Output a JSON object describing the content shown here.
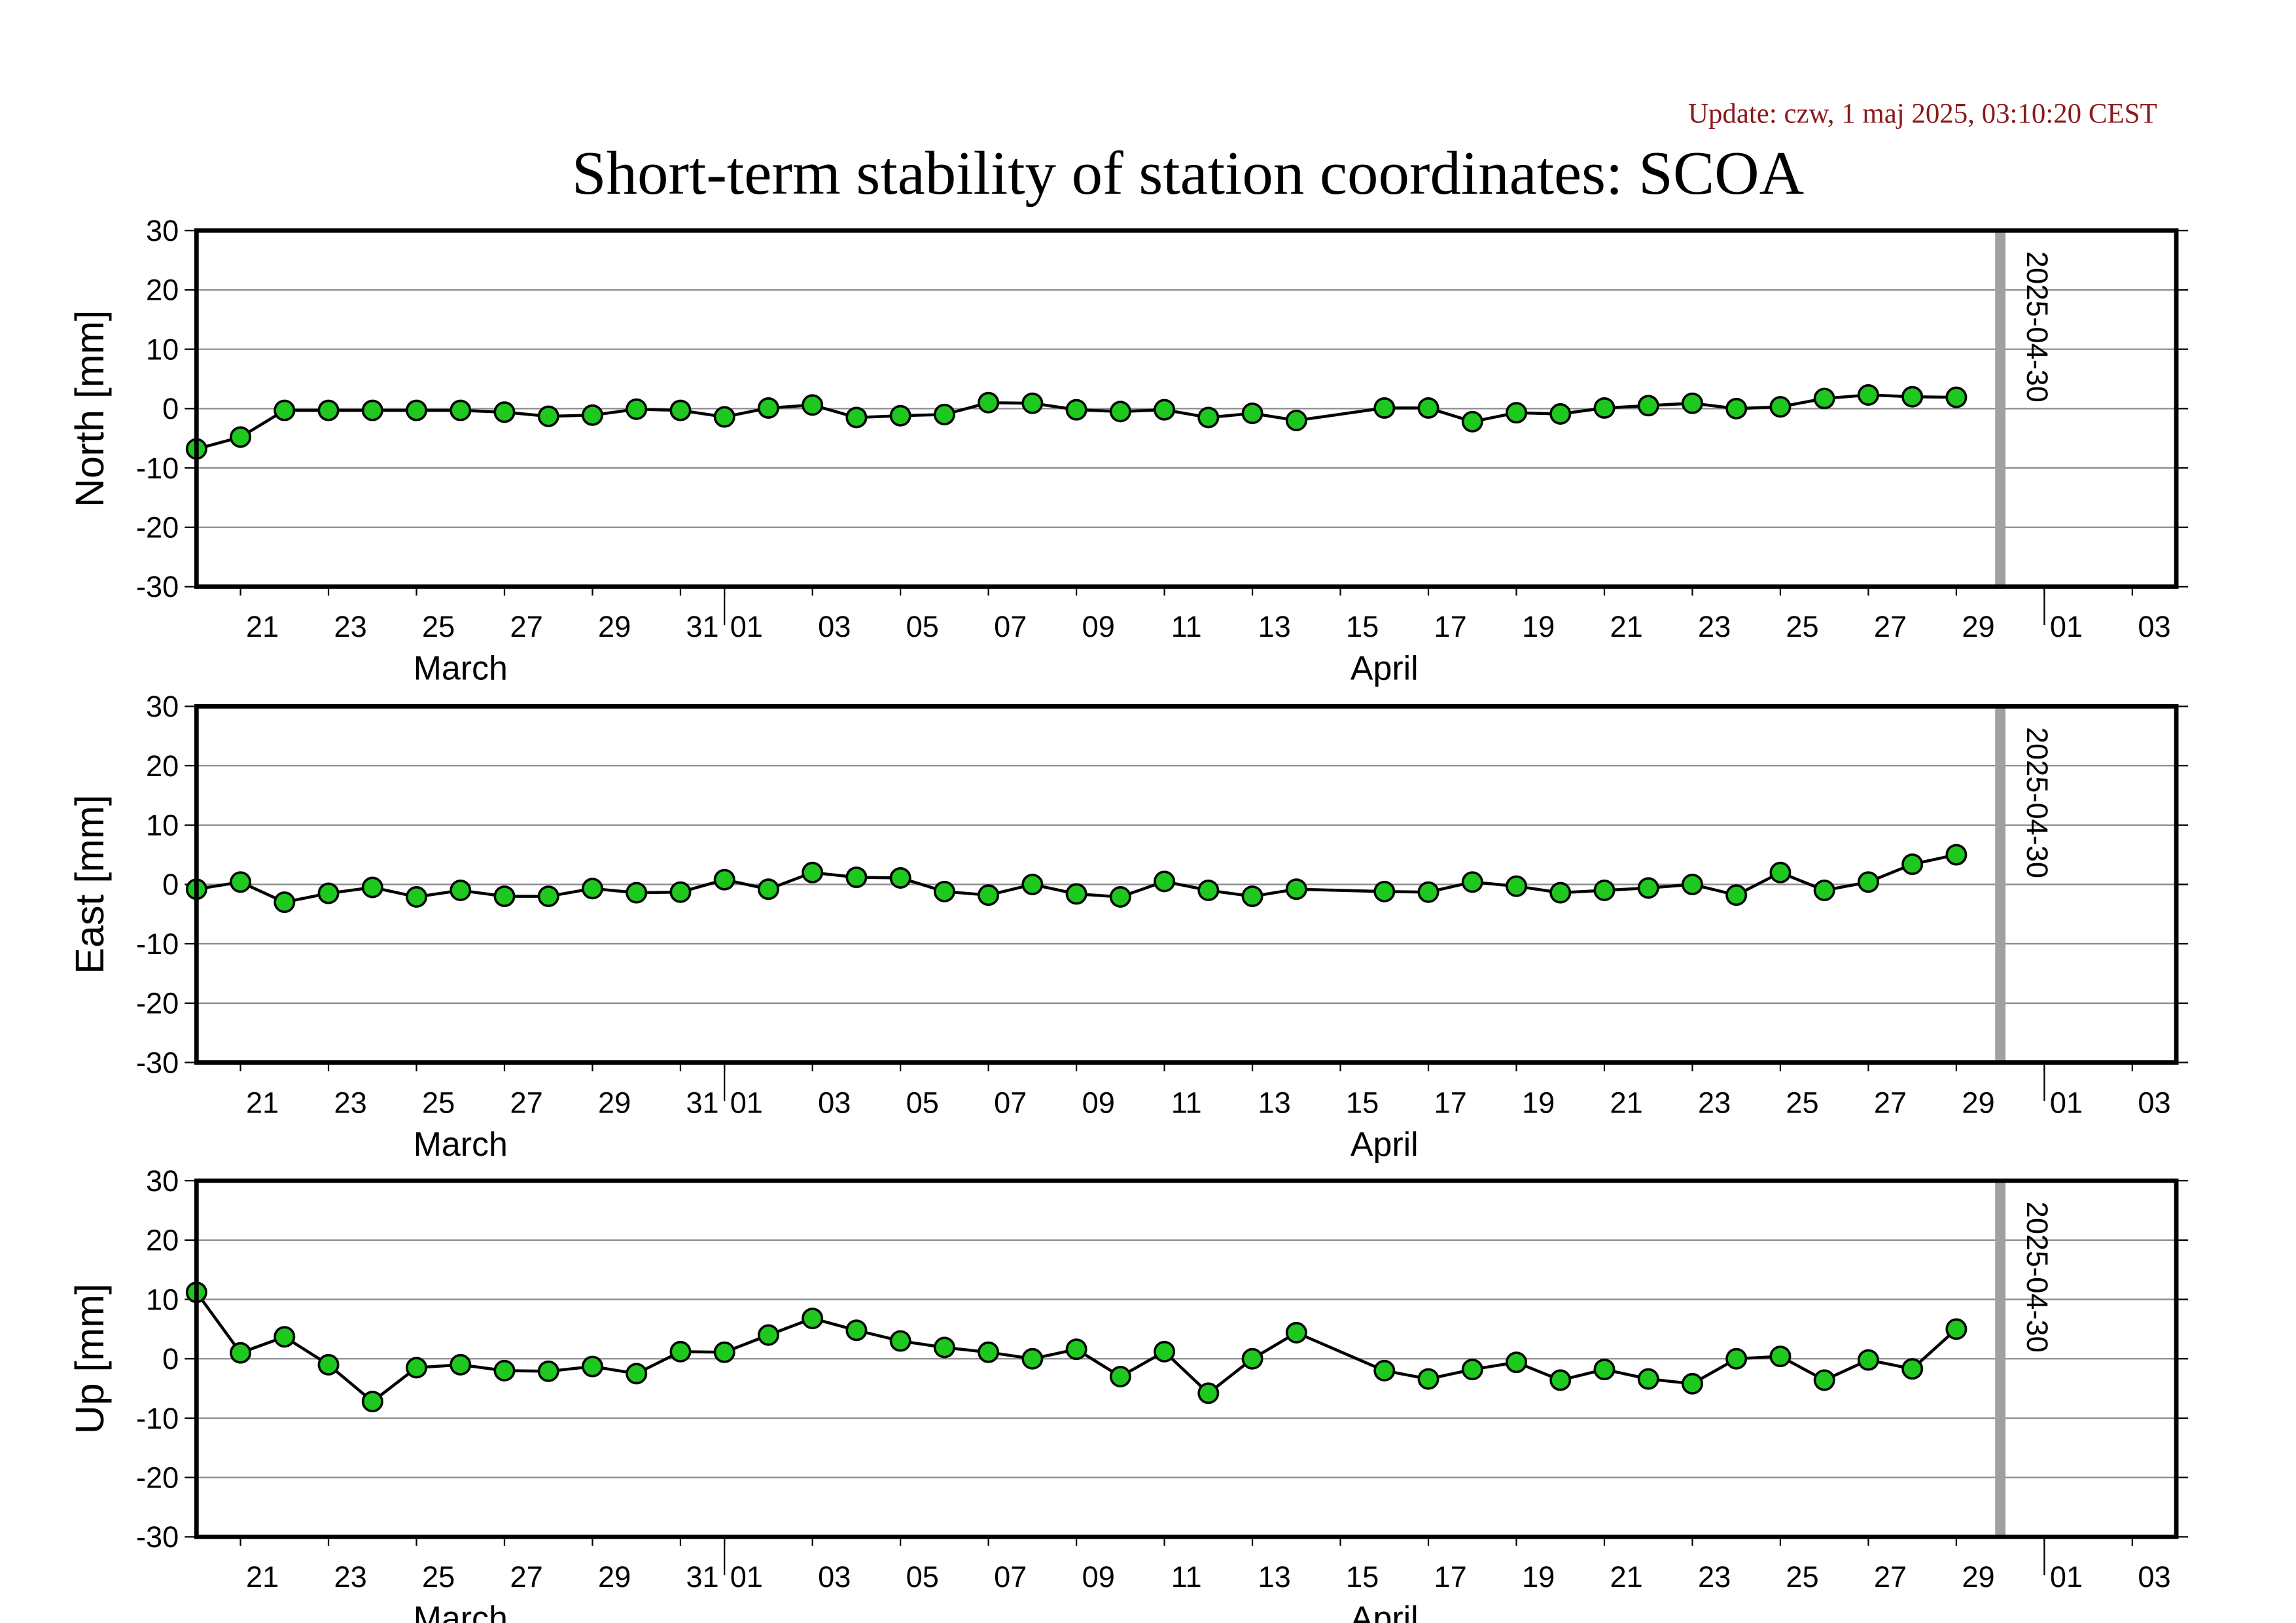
{
  "update": "Update: czw, 1 maj 2025, 03:10:20 CEST",
  "title": "Short-term stability of station coordinates: SCOA",
  "chart_data": [
    {
      "type": "line",
      "ylabel": "North [mm]",
      "ylim": [
        -30,
        30
      ],
      "yticks": [
        -30,
        -20,
        -10,
        0,
        10,
        20,
        30
      ],
      "grid": true,
      "xlim": [
        "03-20",
        "05-04"
      ],
      "xticks": [
        {
          "value": "03-21",
          "label": "21"
        },
        {
          "value": "03-23",
          "label": "23"
        },
        {
          "value": "03-25",
          "label": "25"
        },
        {
          "value": "03-27",
          "label": "27"
        },
        {
          "value": "03-29",
          "label": "29"
        },
        {
          "value": "03-31",
          "label": "31"
        },
        {
          "value": "04-01",
          "label": "01"
        },
        {
          "value": "04-03",
          "label": "03"
        },
        {
          "value": "04-05",
          "label": "05"
        },
        {
          "value": "04-07",
          "label": "07"
        },
        {
          "value": "04-09",
          "label": "09"
        },
        {
          "value": "04-11",
          "label": "11"
        },
        {
          "value": "04-13",
          "label": "13"
        },
        {
          "value": "04-15",
          "label": "15"
        },
        {
          "value": "04-17",
          "label": "17"
        },
        {
          "value": "04-19",
          "label": "19"
        },
        {
          "value": "04-21",
          "label": "21"
        },
        {
          "value": "04-23",
          "label": "23"
        },
        {
          "value": "04-25",
          "label": "25"
        },
        {
          "value": "04-27",
          "label": "27"
        },
        {
          "value": "04-29",
          "label": "29"
        },
        {
          "value": "05-01",
          "label": "01"
        },
        {
          "value": "05-03",
          "label": "03"
        }
      ],
      "month_ticks": [
        {
          "value": "03-01",
          "label": "March"
        },
        {
          "value": "04-01",
          "label": "April"
        },
        {
          "value": "05-01",
          "label": null
        }
      ],
      "vline": {
        "x": "04-30",
        "label": "2025-04-30",
        "color": "#a0a0a0"
      },
      "x": [
        "03-20",
        "03-21",
        "03-22",
        "03-23",
        "03-24",
        "03-25",
        "03-26",
        "03-27",
        "03-28",
        "03-29",
        "03-30",
        "03-31",
        "04-01",
        "04-02",
        "04-03",
        "04-04",
        "04-05",
        "04-06",
        "04-07",
        "04-08",
        "04-09",
        "04-10",
        "04-11",
        "04-12",
        "04-13",
        "04-14",
        "04-16",
        "04-17",
        "04-18",
        "04-19",
        "04-20",
        "04-21",
        "04-22",
        "04-23",
        "04-24",
        "04-25",
        "04-26",
        "04-27",
        "04-28",
        "04-29"
      ],
      "series": [
        {
          "color": "#1ec81e",
          "line_color": "#000000",
          "values": [
            -6.8,
            -4.8,
            -0.3,
            -0.3,
            -0.3,
            -0.3,
            -0.3,
            -0.6,
            -1.3,
            -1.1,
            -0.1,
            -0.3,
            -1.4,
            0.1,
            0.6,
            -1.5,
            -1.2,
            -1.0,
            1.0,
            0.9,
            -0.2,
            -0.5,
            -0.2,
            -1.5,
            -0.8,
            -2.0,
            0.1,
            0.1,
            -2.2,
            -0.7,
            -0.9,
            0.1,
            0.5,
            0.9,
            0.0,
            0.3,
            1.7,
            2.3,
            2.0,
            1.9
          ]
        }
      ]
    },
    {
      "type": "line",
      "ylabel": "East [mm]",
      "ylim": [
        -30,
        30
      ],
      "yticks": [
        -30,
        -20,
        -10,
        0,
        10,
        20,
        30
      ],
      "grid": true,
      "xlim": [
        "03-20",
        "05-04"
      ],
      "xticks": [
        {
          "value": "03-21",
          "label": "21"
        },
        {
          "value": "03-23",
          "label": "23"
        },
        {
          "value": "03-25",
          "label": "25"
        },
        {
          "value": "03-27",
          "label": "27"
        },
        {
          "value": "03-29",
          "label": "29"
        },
        {
          "value": "03-31",
          "label": "31"
        },
        {
          "value": "04-01",
          "label": "01"
        },
        {
          "value": "04-03",
          "label": "03"
        },
        {
          "value": "04-05",
          "label": "05"
        },
        {
          "value": "04-07",
          "label": "07"
        },
        {
          "value": "04-09",
          "label": "09"
        },
        {
          "value": "04-11",
          "label": "11"
        },
        {
          "value": "04-13",
          "label": "13"
        },
        {
          "value": "04-15",
          "label": "15"
        },
        {
          "value": "04-17",
          "label": "17"
        },
        {
          "value": "04-19",
          "label": "19"
        },
        {
          "value": "04-21",
          "label": "21"
        },
        {
          "value": "04-23",
          "label": "23"
        },
        {
          "value": "04-25",
          "label": "25"
        },
        {
          "value": "04-27",
          "label": "27"
        },
        {
          "value": "04-29",
          "label": "29"
        },
        {
          "value": "05-01",
          "label": "01"
        },
        {
          "value": "05-03",
          "label": "03"
        }
      ],
      "month_ticks": [
        {
          "value": "03-01",
          "label": "March"
        },
        {
          "value": "04-01",
          "label": "April"
        },
        {
          "value": "05-01",
          "label": null
        }
      ],
      "vline": {
        "x": "04-30",
        "label": "2025-04-30",
        "color": "#a0a0a0"
      },
      "x": [
        "03-20",
        "03-21",
        "03-22",
        "03-23",
        "03-24",
        "03-25",
        "03-26",
        "03-27",
        "03-28",
        "03-29",
        "03-30",
        "03-31",
        "04-01",
        "04-02",
        "04-03",
        "04-04",
        "04-05",
        "04-06",
        "04-07",
        "04-08",
        "04-09",
        "04-10",
        "04-11",
        "04-12",
        "04-13",
        "04-14",
        "04-16",
        "04-17",
        "04-18",
        "04-19",
        "04-20",
        "04-21",
        "04-22",
        "04-23",
        "04-24",
        "04-25",
        "04-26",
        "04-27",
        "04-28",
        "04-29"
      ],
      "series": [
        {
          "color": "#1ec81e",
          "line_color": "#000000",
          "values": [
            -0.8,
            0.4,
            -3.0,
            -1.5,
            -0.5,
            -2.1,
            -1.0,
            -2.0,
            -2.0,
            -0.7,
            -1.4,
            -1.3,
            0.8,
            -0.8,
            2.0,
            1.2,
            1.1,
            -1.2,
            -1.8,
            0.0,
            -1.6,
            -2.1,
            0.5,
            -1.0,
            -2.0,
            -0.8,
            -1.2,
            -1.3,
            0.4,
            -0.3,
            -1.4,
            -1.0,
            -0.6,
            0.0,
            -1.8,
            2.0,
            -1.0,
            0.4,
            3.4,
            5.0
          ]
        }
      ]
    },
    {
      "type": "line",
      "ylabel": "Up [mm]",
      "ylim": [
        -30,
        30
      ],
      "yticks": [
        -30,
        -20,
        -10,
        0,
        10,
        20,
        30
      ],
      "grid": true,
      "xlim": [
        "03-20",
        "05-04"
      ],
      "xticks": [
        {
          "value": "03-21",
          "label": "21"
        },
        {
          "value": "03-23",
          "label": "23"
        },
        {
          "value": "03-25",
          "label": "25"
        },
        {
          "value": "03-27",
          "label": "27"
        },
        {
          "value": "03-29",
          "label": "29"
        },
        {
          "value": "03-31",
          "label": "31"
        },
        {
          "value": "04-01",
          "label": "01"
        },
        {
          "value": "04-03",
          "label": "03"
        },
        {
          "value": "04-05",
          "label": "05"
        },
        {
          "value": "04-07",
          "label": "07"
        },
        {
          "value": "04-09",
          "label": "09"
        },
        {
          "value": "04-11",
          "label": "11"
        },
        {
          "value": "04-13",
          "label": "13"
        },
        {
          "value": "04-15",
          "label": "15"
        },
        {
          "value": "04-17",
          "label": "17"
        },
        {
          "value": "04-19",
          "label": "19"
        },
        {
          "value": "04-21",
          "label": "21"
        },
        {
          "value": "04-23",
          "label": "23"
        },
        {
          "value": "04-25",
          "label": "25"
        },
        {
          "value": "04-27",
          "label": "27"
        },
        {
          "value": "04-29",
          "label": "29"
        },
        {
          "value": "05-01",
          "label": "01"
        },
        {
          "value": "05-03",
          "label": "03"
        }
      ],
      "month_ticks": [
        {
          "value": "03-01",
          "label": "March"
        },
        {
          "value": "04-01",
          "label": "April"
        },
        {
          "value": "05-01",
          "label": null
        }
      ],
      "vline": {
        "x": "04-30",
        "label": "2025-04-30",
        "color": "#a0a0a0"
      },
      "x": [
        "03-20",
        "03-21",
        "03-22",
        "03-23",
        "03-24",
        "03-25",
        "03-26",
        "03-27",
        "03-28",
        "03-29",
        "03-30",
        "03-31",
        "04-01",
        "04-02",
        "04-03",
        "04-04",
        "04-05",
        "04-06",
        "04-07",
        "04-08",
        "04-09",
        "04-10",
        "04-11",
        "04-12",
        "04-13",
        "04-14",
        "04-16",
        "04-17",
        "04-18",
        "04-19",
        "04-20",
        "04-21",
        "04-22",
        "04-23",
        "04-24",
        "04-25",
        "04-26",
        "04-27",
        "04-28",
        "04-29"
      ],
      "series": [
        {
          "color": "#1ec81e",
          "line_color": "#000000",
          "values": [
            11.2,
            1.0,
            3.7,
            -1.0,
            -7.2,
            -1.5,
            -1.0,
            -2.0,
            -2.1,
            -1.3,
            -2.5,
            1.2,
            1.1,
            4.0,
            6.8,
            4.8,
            3.0,
            1.9,
            1.1,
            0.0,
            1.6,
            -3.0,
            1.2,
            -5.8,
            0.0,
            4.4,
            -2.0,
            -3.4,
            -1.8,
            -0.6,
            -3.6,
            -1.8,
            -3.4,
            -4.2,
            0.0,
            0.4,
            -3.6,
            -0.2,
            -1.7,
            5.0
          ]
        }
      ]
    }
  ]
}
